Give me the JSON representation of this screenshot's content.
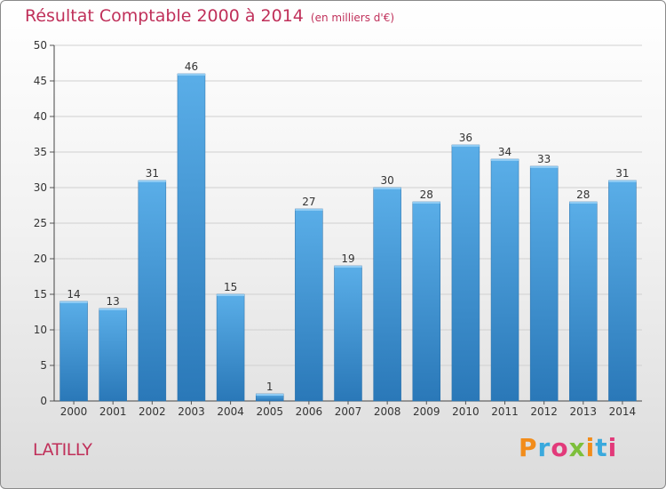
{
  "header": {
    "title": "Résultat Comptable 2000 à 2014",
    "unit": "(en milliers d'€)"
  },
  "footer": {
    "commune": "LATILLY",
    "logo": "Proxiti"
  },
  "colors": {
    "bar_light": "#5aaee8",
    "bar_dark": "#2a78b8",
    "title": "#c0305a"
  },
  "chart_data": {
    "type": "bar",
    "title": "Résultat Comptable 2000 à 2014",
    "subtitle": "(en milliers d'€)",
    "categories": [
      "2000",
      "2001",
      "2002",
      "2003",
      "2004",
      "2005",
      "2006",
      "2007",
      "2008",
      "2009",
      "2010",
      "2011",
      "2012",
      "2013",
      "2014"
    ],
    "values": [
      14,
      13,
      31,
      46,
      15,
      1,
      27,
      19,
      30,
      28,
      36,
      34,
      33,
      28,
      31
    ],
    "value_labels": [
      "14",
      "13",
      "31",
      "46",
      "15",
      "1",
      "27",
      "19",
      "30",
      "28",
      "36",
      "34",
      "33",
      "28",
      "31"
    ],
    "yticks": [
      0,
      5,
      10,
      15,
      20,
      25,
      30,
      35,
      40,
      45,
      50
    ],
    "ytick_labels": [
      "0",
      "5",
      "10",
      "15",
      "20",
      "25",
      "30",
      "35",
      "40",
      "45",
      "50"
    ],
    "ylim": [
      0,
      50
    ],
    "xlabel": "",
    "ylabel": "",
    "grid": true
  }
}
